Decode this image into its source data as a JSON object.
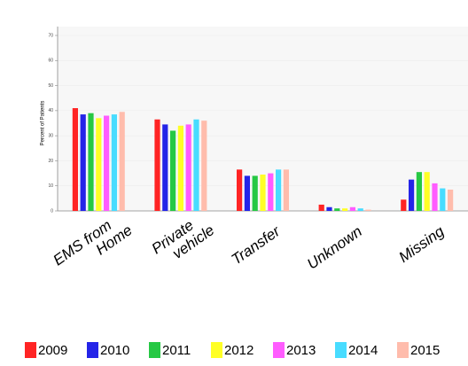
{
  "chart_data": {
    "type": "bar",
    "y_label": "Percent of Patients",
    "categories": [
      "EMS from Home",
      "Private vehicle",
      "Transfer",
      "Unknown",
      "Missing"
    ],
    "series": [
      {
        "name": "2009",
        "color": "#ff2424",
        "values": [
          41,
          36.5,
          16.5,
          2.5,
          4.5
        ]
      },
      {
        "name": "2010",
        "color": "#2424e8",
        "values": [
          38.5,
          34.5,
          14,
          1.5,
          12.5
        ]
      },
      {
        "name": "2011",
        "color": "#26c844",
        "values": [
          39,
          32,
          14,
          1,
          15.5
        ]
      },
      {
        "name": "2012",
        "color": "#ffff26",
        "values": [
          37,
          34,
          14.5,
          1,
          15.5
        ]
      },
      {
        "name": "2013",
        "color": "#ff5cff",
        "values": [
          38,
          34.5,
          15,
          1.5,
          11
        ]
      },
      {
        "name": "2014",
        "color": "#48dcff",
        "values": [
          38.5,
          36.5,
          16.5,
          1,
          9
        ]
      },
      {
        "name": "2015",
        "color": "#ffbcac",
        "values": [
          39.5,
          36,
          16.5,
          0.5,
          8.5
        ]
      }
    ],
    "ylim": [
      0,
      70
    ],
    "yticks": [
      0,
      10,
      20,
      30,
      40,
      50,
      60,
      70
    ],
    "grid": true
  }
}
